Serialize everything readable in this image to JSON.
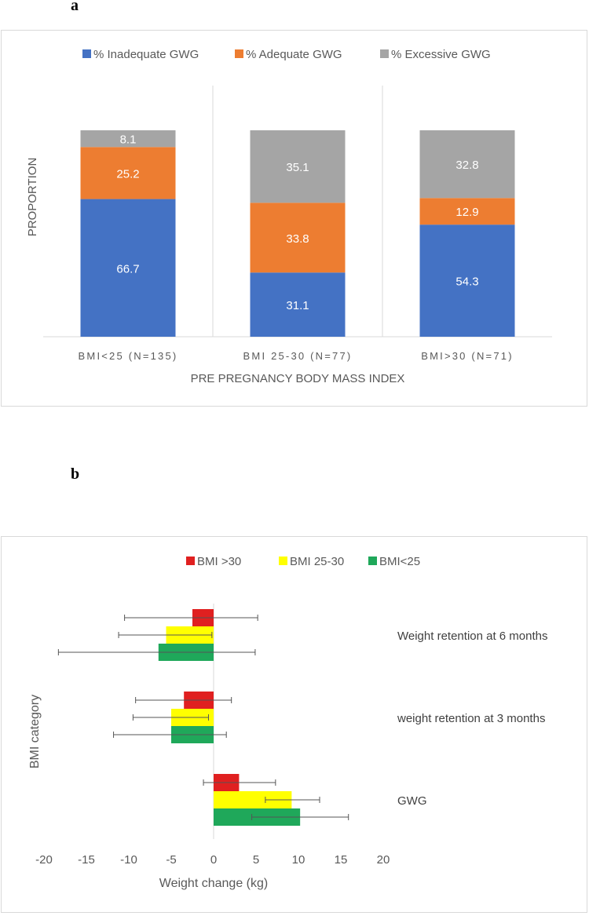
{
  "figure": {
    "label_a": "a",
    "label_b": "b"
  },
  "chart_data": [
    {
      "type": "bar",
      "stacked": true,
      "title": "",
      "xlabel": "PRE PREGNANCY BODY MASS INDEX",
      "ylabel": "PROPORTION",
      "categories": [
        "BMI<25  (N=135)",
        "BMI 25-30 (N=77)",
        "BMI>30 (N=71)"
      ],
      "series": [
        {
          "name": "% Inadequate GWG",
          "color": "#4472c4",
          "values": [
            66.7,
            31.1,
            54.3
          ]
        },
        {
          "name": "% Adequate GWG",
          "color": "#ed7d31",
          "values": [
            25.2,
            33.8,
            12.9
          ]
        },
        {
          "name": "% Excessive GWG",
          "color": "#a5a5a5",
          "values": [
            8.1,
            35.1,
            32.8
          ]
        }
      ],
      "ylim": [
        0,
        100
      ],
      "grid": false,
      "legend": "top"
    },
    {
      "type": "bar",
      "orientation": "horizontal",
      "title": "",
      "xlabel": "Weight change (kg)",
      "ylabel": "BMI category",
      "categories": [
        "Weight retention at 6 months",
        "weight retention at 3 months",
        "GWG"
      ],
      "series": [
        {
          "name": "BMI >30",
          "color": "#e02020",
          "values": [
            -2.5,
            -3.5,
            3.0
          ],
          "err_low": [
            -10.5,
            -9.2,
            -1.2
          ],
          "err_high": [
            5.2,
            2.1,
            7.3
          ]
        },
        {
          "name": "BMI 25-30",
          "color": "#ffff00",
          "values": [
            -5.6,
            -5.0,
            9.2
          ],
          "err_low": [
            -11.2,
            -9.5,
            6.1
          ],
          "err_high": [
            -0.2,
            -0.6,
            12.5
          ]
        },
        {
          "name": "BMI<25",
          "color": "#1fa85a",
          "values": [
            -6.5,
            -5.0,
            10.2
          ],
          "err_low": [
            -18.3,
            -11.8,
            4.5
          ],
          "err_high": [
            4.9,
            1.5,
            15.9
          ]
        }
      ],
      "xlim": [
        -20,
        20
      ],
      "xticks": [
        -20,
        -15,
        -10,
        -5,
        0,
        5,
        10,
        15,
        20
      ],
      "grid": false,
      "legend": "top"
    }
  ]
}
